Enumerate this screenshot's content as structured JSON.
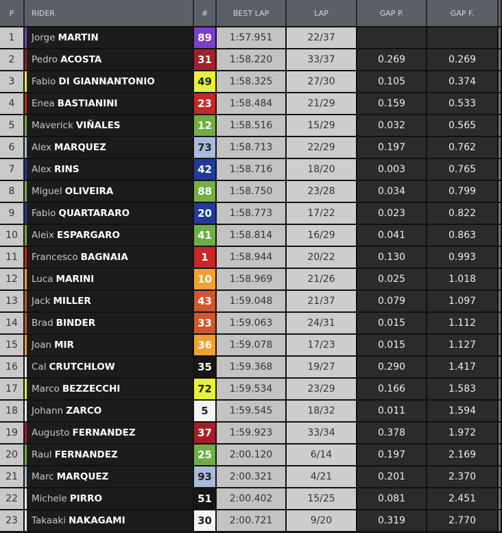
{
  "headers": {
    "p": "P",
    "rider": "RIDER",
    "num": "#",
    "best": "BEST LAP",
    "lap": "LAP",
    "gap_p": "GAP P.",
    "gap_f": "GAP F."
  },
  "rows": [
    {
      "p": "1",
      "first": "Jorge",
      "last": "MARTIN",
      "num": "89",
      "color": "#7b3fc9",
      "text": "#fff",
      "best": "1:57.951",
      "lap": "22/37",
      "gap_p": "",
      "gap_f": ""
    },
    {
      "p": "2",
      "first": "Pedro",
      "last": "ACOSTA",
      "num": "31",
      "color": "#a3202a",
      "text": "#fff",
      "best": "1:58.220",
      "lap": "33/37",
      "gap_p": "0.269",
      "gap_f": "0.269"
    },
    {
      "p": "3",
      "first": "Fabio",
      "last": "DI GIANNANTONIO",
      "num": "49",
      "color": "#e6f23a",
      "text": "#222",
      "best": "1:58.325",
      "lap": "27/30",
      "gap_p": "0.105",
      "gap_f": "0.374"
    },
    {
      "p": "4",
      "first": "Enea",
      "last": "BASTIANINI",
      "num": "23",
      "color": "#c62828",
      "text": "#fff",
      "best": "1:58.484",
      "lap": "21/29",
      "gap_p": "0.159",
      "gap_f": "0.533"
    },
    {
      "p": "5",
      "first": "Maverick",
      "last": "VIÑALES",
      "num": "12",
      "color": "#6fae45",
      "text": "#fff",
      "best": "1:58.516",
      "lap": "15/29",
      "gap_p": "0.032",
      "gap_f": "0.565"
    },
    {
      "p": "6",
      "first": "Alex",
      "last": "MARQUEZ",
      "num": "73",
      "color": "#a9bbdc",
      "text": "#222",
      "best": "1:58.713",
      "lap": "22/29",
      "gap_p": "0.197",
      "gap_f": "0.762"
    },
    {
      "p": "7",
      "first": "Alex",
      "last": "RINS",
      "num": "42",
      "color": "#1f3c9c",
      "text": "#fff",
      "best": "1:58.716",
      "lap": "18/20",
      "gap_p": "0.003",
      "gap_f": "0.765"
    },
    {
      "p": "8",
      "first": "Miguel",
      "last": "OLIVEIRA",
      "num": "88",
      "color": "#73b046",
      "text": "#fff",
      "best": "1:58.750",
      "lap": "23/28",
      "gap_p": "0.034",
      "gap_f": "0.799"
    },
    {
      "p": "9",
      "first": "Fabio",
      "last": "QUARTARARO",
      "num": "20",
      "color": "#1f3c9c",
      "text": "#fff",
      "best": "1:58.773",
      "lap": "17/22",
      "gap_p": "0.023",
      "gap_f": "0.822"
    },
    {
      "p": "10",
      "first": "Aleix",
      "last": "ESPARGARO",
      "num": "41",
      "color": "#6fae45",
      "text": "#fff",
      "best": "1:58.814",
      "lap": "16/29",
      "gap_p": "0.041",
      "gap_f": "0.863"
    },
    {
      "p": "11",
      "first": "Francesco",
      "last": "BAGNAIA",
      "num": "1",
      "color": "#c62828",
      "text": "#fff",
      "best": "1:58.944",
      "lap": "20/22",
      "gap_p": "0.130",
      "gap_f": "0.993"
    },
    {
      "p": "12",
      "first": "Luca",
      "last": "MARINI",
      "num": "10",
      "color": "#f0a030",
      "text": "#fff",
      "best": "1:58.969",
      "lap": "21/26",
      "gap_p": "0.025",
      "gap_f": "1.018"
    },
    {
      "p": "13",
      "first": "Jack",
      "last": "MILLER",
      "num": "43",
      "color": "#d0562e",
      "text": "#fff",
      "best": "1:59.048",
      "lap": "21/37",
      "gap_p": "0.079",
      "gap_f": "1.097"
    },
    {
      "p": "14",
      "first": "Brad",
      "last": "BINDER",
      "num": "33",
      "color": "#d0562e",
      "text": "#fff",
      "best": "1:59.063",
      "lap": "24/31",
      "gap_p": "0.015",
      "gap_f": "1.112"
    },
    {
      "p": "15",
      "first": "Joan",
      "last": "MIR",
      "num": "36",
      "color": "#f0a030",
      "text": "#fff",
      "best": "1:59.078",
      "lap": "17/23",
      "gap_p": "0.015",
      "gap_f": "1.127"
    },
    {
      "p": "16",
      "first": "Cal",
      "last": "CRUTCHLOW",
      "num": "35",
      "color": "#161616",
      "stripe": "#f0f0f0",
      "text": "#fff",
      "best": "1:59.368",
      "lap": "19/27",
      "gap_p": "0.290",
      "gap_f": "1.417"
    },
    {
      "p": "17",
      "first": "Marco",
      "last": "BEZZECCHI",
      "num": "72",
      "color": "#e6f23a",
      "text": "#222",
      "best": "1:59.534",
      "lap": "23/29",
      "gap_p": "0.166",
      "gap_f": "1.583"
    },
    {
      "p": "18",
      "first": "Johann",
      "last": "ZARCO",
      "num": "5",
      "color": "#f4f4f4",
      "text": "#222",
      "best": "1:59.545",
      "lap": "18/32",
      "gap_p": "0.011",
      "gap_f": "1.594"
    },
    {
      "p": "19",
      "first": "Augusto",
      "last": "FERNANDEZ",
      "num": "37",
      "color": "#a3202a",
      "text": "#fff",
      "best": "1:59.923",
      "lap": "33/34",
      "gap_p": "0.378",
      "gap_f": "1.972"
    },
    {
      "p": "20",
      "first": "Raul",
      "last": "FERNANDEZ",
      "num": "25",
      "color": "#6fae45",
      "text": "#fff",
      "best": "2:00.120",
      "lap": "6/14",
      "gap_p": "0.197",
      "gap_f": "2.169"
    },
    {
      "p": "21",
      "first": "Marc",
      "last": "MARQUEZ",
      "num": "93",
      "color": "#a9bbdc",
      "text": "#222",
      "best": "2:00.321",
      "lap": "4/21",
      "gap_p": "0.201",
      "gap_f": "2.370"
    },
    {
      "p": "22",
      "first": "Michele",
      "last": "PIRRO",
      "num": "51",
      "color": "#161616",
      "stripe": "#f0f0f0",
      "text": "#fff",
      "best": "2:00.402",
      "lap": "15/25",
      "gap_p": "0.081",
      "gap_f": "2.451"
    },
    {
      "p": "23",
      "first": "Takaaki",
      "last": "NAKAGAMI",
      "num": "30",
      "color": "#f4f4f4",
      "text": "#222",
      "best": "2:00.721",
      "lap": "9/20",
      "gap_p": "0.319",
      "gap_f": "2.770"
    }
  ]
}
